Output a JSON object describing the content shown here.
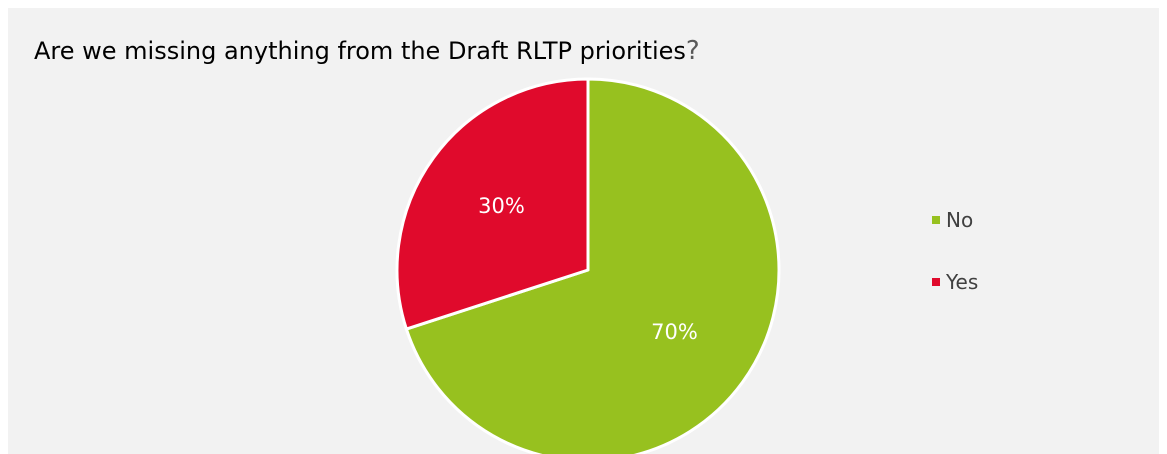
{
  "chart_data": {
    "type": "pie",
    "title": "Are we missing anything from the Draft RLTP priorities",
    "title_end": "?",
    "categories": [
      "No",
      "Yes"
    ],
    "values": [
      70,
      30
    ],
    "labels": [
      "70%",
      "30%"
    ],
    "colors": [
      "#97c11f",
      "#e00a2c"
    ],
    "legend_position": "right"
  }
}
